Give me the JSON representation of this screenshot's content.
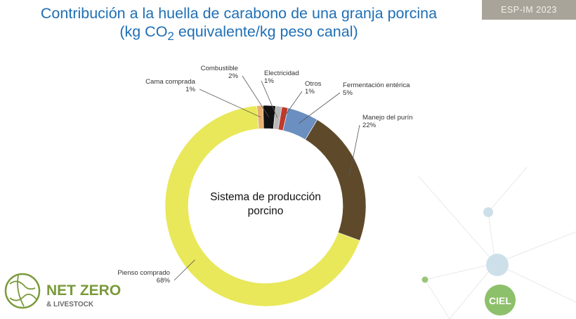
{
  "header": {
    "title_line1": "Contribución a la huella de carabono de una granja porcina",
    "title_line2_pre": "(kg CO",
    "title_line2_sub": "2",
    "title_line2_post": " equivalente/kg peso canal)"
  },
  "badge": "ESP-IM 2023",
  "chart_data": {
    "type": "pie",
    "center_label_line1": "Sistema de producción",
    "center_label_line2": "porcino",
    "slices": [
      {
        "name": "Cama comprada",
        "value": 1,
        "label": "1%",
        "color": "#e8b070"
      },
      {
        "name": "Combustible",
        "value": 2,
        "label": "2%",
        "color": "#111111"
      },
      {
        "name": "Electricidad",
        "value": 1,
        "label": "1%",
        "color": "#b8b8b8"
      },
      {
        "name": "Otros",
        "value": 1,
        "label": "1%",
        "color": "#c0392b"
      },
      {
        "name": "Fermentación entérica",
        "value": 5,
        "label": "5%",
        "color": "#6b8fc0"
      },
      {
        "name": "Manejo del purín",
        "value": 22,
        "label": "22%",
        "color": "#5e4a2a"
      },
      {
        "name": "Pienso comprado",
        "value": 68,
        "label": "68%",
        "color": "#e8e85a"
      }
    ]
  },
  "logos": {
    "netzero_line1": "NET ZERO",
    "netzero_line2": "& LIVESTOCK",
    "ciel": "CIEL"
  }
}
